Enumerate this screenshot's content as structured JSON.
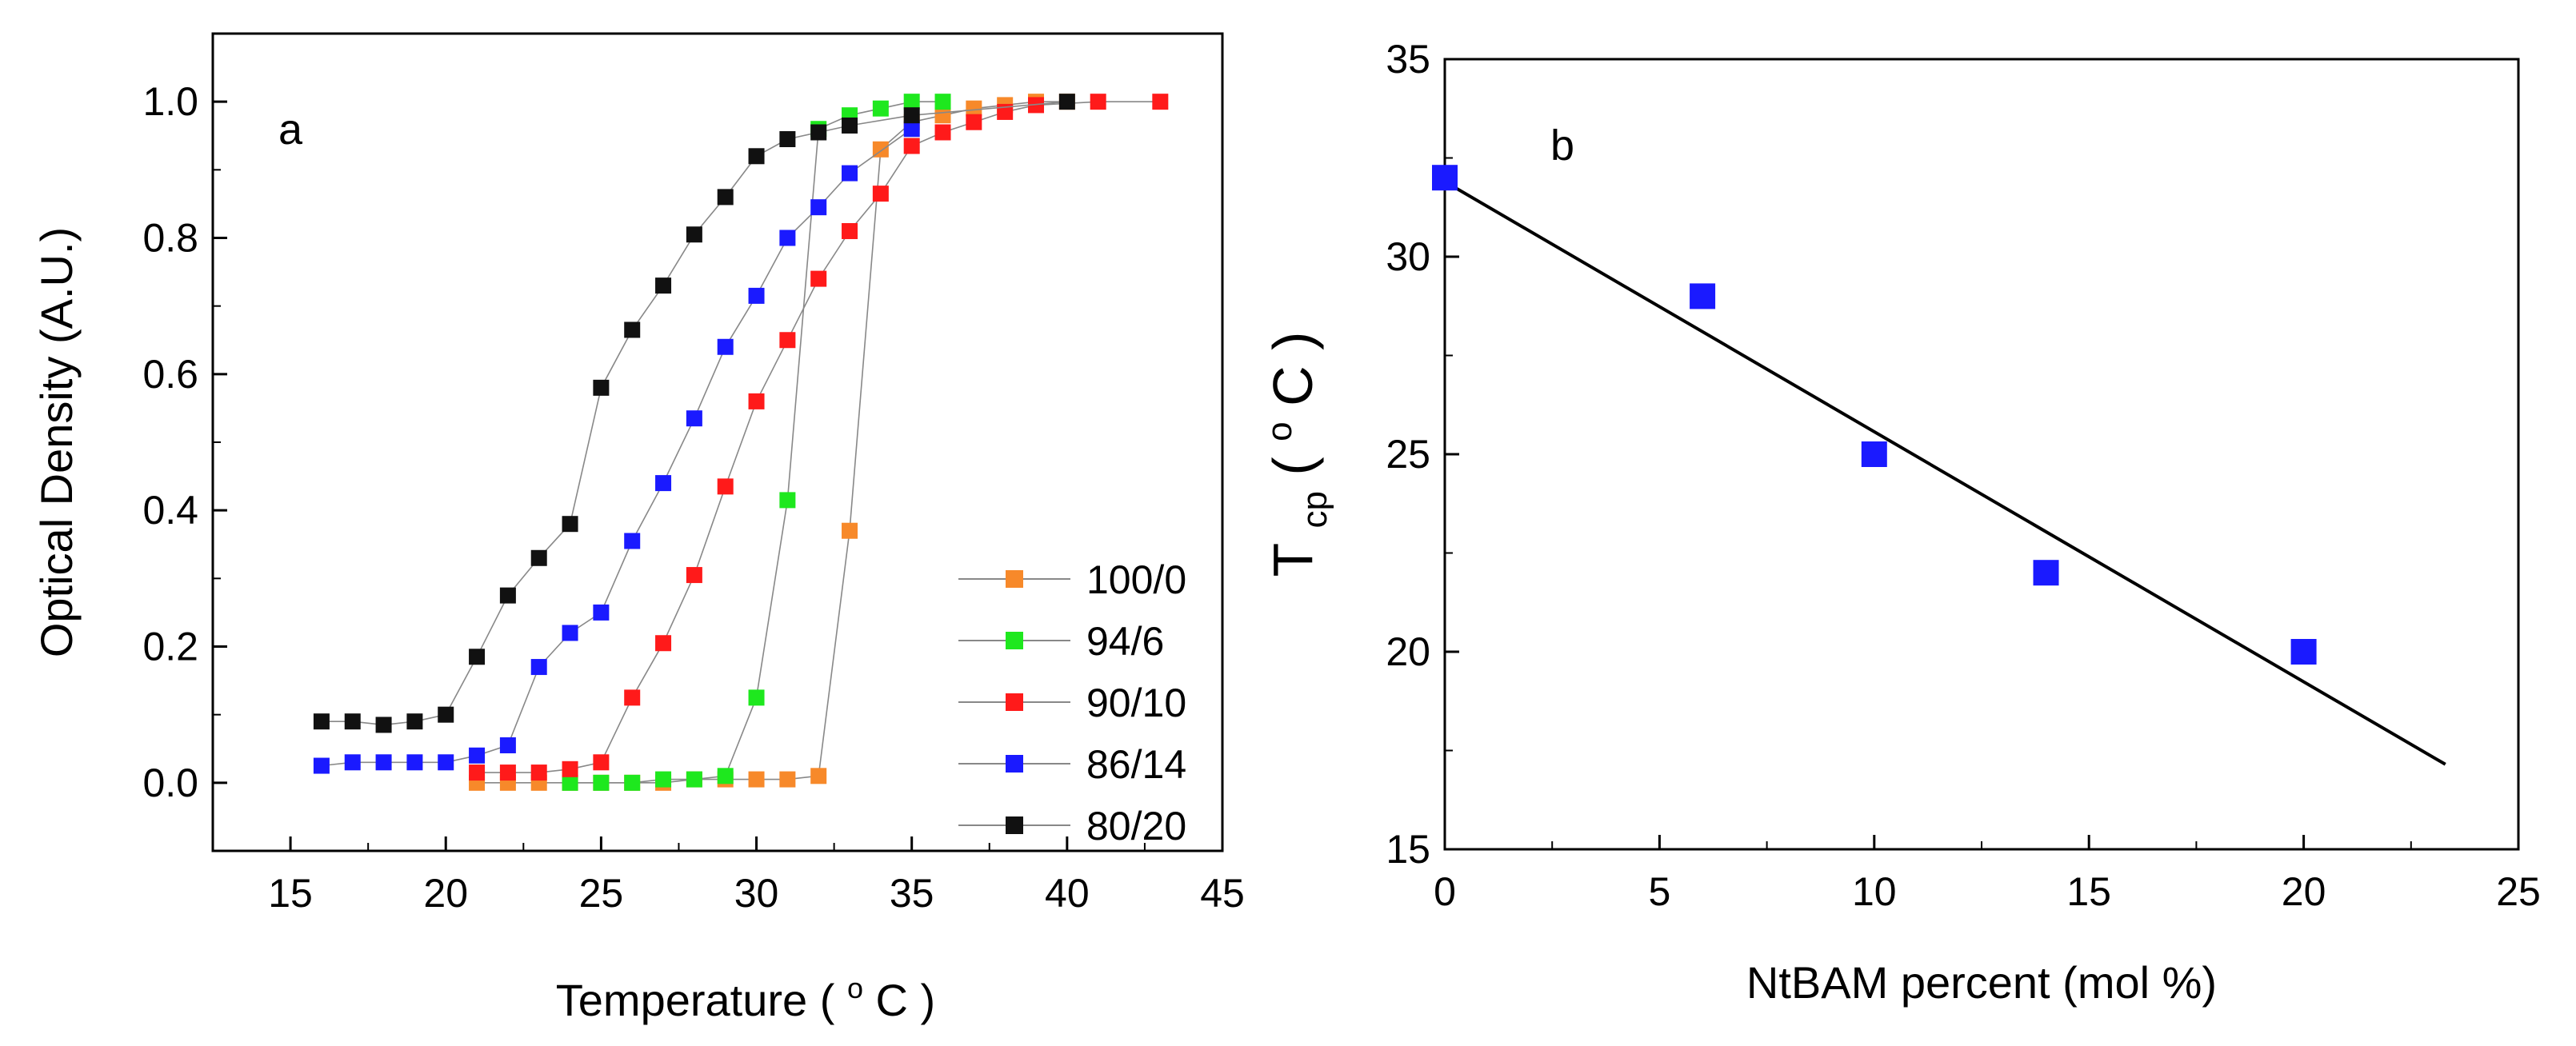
{
  "chart_data": [
    {
      "type": "line",
      "panel_label": "a",
      "title": "",
      "xlabel": "Temperature",
      "xlabel_unit_deg": "o",
      "xlabel_unit_c": "C",
      "ylabel": "Optical Density (A.U.)",
      "xlim": [
        12.5,
        45
      ],
      "ylim": [
        -0.1,
        1.1
      ],
      "xticks": [
        15,
        20,
        25,
        30,
        35,
        40,
        45
      ],
      "yticks": [
        0.0,
        0.2,
        0.4,
        0.6,
        0.8,
        1.0
      ],
      "ytick_labels": [
        "0.0",
        "0.2",
        "0.4",
        "0.6",
        "0.8",
        "1.0"
      ],
      "legend_position": "bottom-right",
      "series": [
        {
          "name": "100/0",
          "color": "#f7892a",
          "x": [
            21,
            22,
            23,
            24,
            25,
            26,
            27,
            28,
            29,
            30,
            31,
            32,
            33,
            34,
            35,
            36,
            37,
            38,
            39,
            40
          ],
          "y": [
            0.0,
            0.0,
            0.0,
            0.0,
            0.0,
            0.0,
            0.0,
            0.005,
            0.005,
            0.005,
            0.005,
            0.01,
            0.37,
            0.93,
            0.97,
            0.98,
            0.99,
            0.995,
            1.0,
            1.0
          ]
        },
        {
          "name": "94/6",
          "color": "#1ee81e",
          "x": [
            24,
            25,
            26,
            27,
            28,
            29,
            30,
            31,
            32,
            33,
            34,
            35,
            36
          ],
          "y": [
            0.0,
            0.0,
            0.0,
            0.005,
            0.005,
            0.01,
            0.125,
            0.415,
            0.96,
            0.98,
            0.99,
            1.0,
            1.0
          ]
        },
        {
          "name": "90/10",
          "color": "#ff1a1a",
          "x": [
            21,
            22,
            23,
            24,
            25,
            26,
            27,
            28,
            29,
            30,
            31,
            32,
            33,
            34,
            35,
            36,
            37,
            38,
            39,
            41,
            43
          ],
          "y": [
            0.015,
            0.015,
            0.015,
            0.02,
            0.03,
            0.125,
            0.205,
            0.305,
            0.435,
            0.56,
            0.65,
            0.74,
            0.81,
            0.865,
            0.935,
            0.955,
            0.97,
            0.985,
            0.995,
            1.0,
            1.0
          ]
        },
        {
          "name": "86/14",
          "color": "#1a1aff",
          "x": [
            16,
            17,
            18,
            19,
            20,
            21,
            22,
            23,
            24,
            25,
            26,
            27,
            28,
            29,
            30,
            31,
            32,
            33,
            35
          ],
          "y": [
            0.025,
            0.03,
            0.03,
            0.03,
            0.03,
            0.04,
            0.055,
            0.17,
            0.22,
            0.25,
            0.355,
            0.44,
            0.535,
            0.64,
            0.715,
            0.8,
            0.845,
            0.895,
            0.96
          ]
        },
        {
          "name": "80/20",
          "color": "#111111",
          "x": [
            16,
            17,
            18,
            19,
            20,
            21,
            22,
            23,
            24,
            25,
            26,
            27,
            28,
            29,
            30,
            31,
            32,
            33,
            35,
            40
          ],
          "y": [
            0.09,
            0.09,
            0.085,
            0.09,
            0.1,
            0.185,
            0.275,
            0.33,
            0.38,
            0.58,
            0.665,
            0.73,
            0.805,
            0.86,
            0.92,
            0.945,
            0.955,
            0.965,
            0.98,
            1.0
          ]
        }
      ]
    },
    {
      "type": "scatter",
      "panel_label": "b",
      "title": "",
      "xlabel": "NtBAM percent (mol %)",
      "ylabel_main": "T",
      "ylabel_sub": "cp",
      "ylabel_unit_deg": "o",
      "ylabel_unit_c": "C",
      "xlim": [
        0,
        25
      ],
      "ylim": [
        15,
        35
      ],
      "xticks": [
        0,
        5,
        10,
        15,
        20,
        25
      ],
      "yticks": [
        15,
        20,
        25,
        30,
        35
      ],
      "marker_color": "#1a1aff",
      "points": {
        "x": [
          0,
          6,
          10,
          14,
          20
        ],
        "y": [
          32,
          29,
          25,
          22,
          20
        ]
      },
      "fit_line": {
        "x": [
          0,
          23.3
        ],
        "y": [
          31.9,
          17.15
        ]
      }
    }
  ]
}
